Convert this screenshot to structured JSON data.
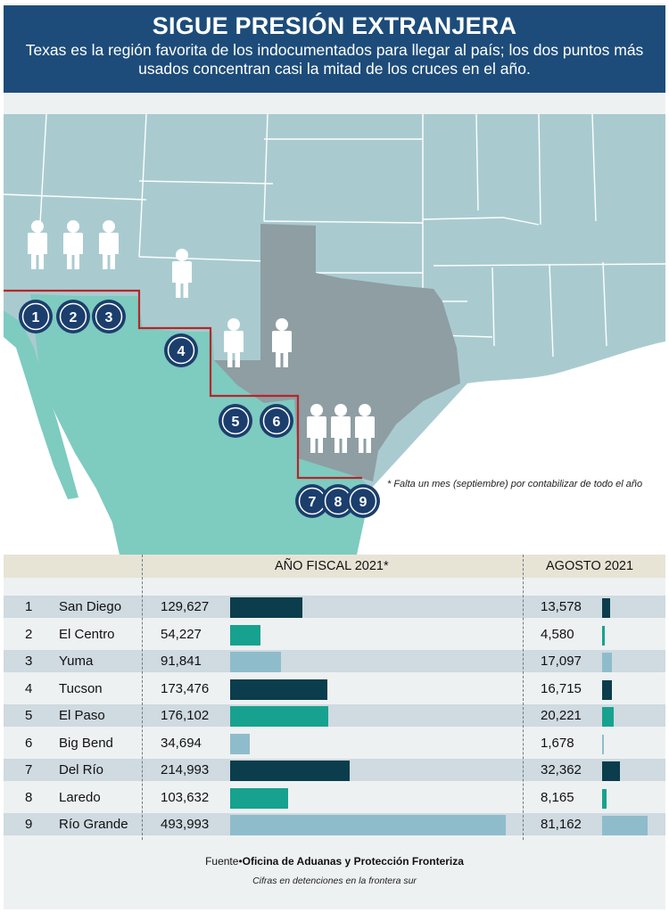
{
  "header": {
    "title": "SIGUE PRESIÓN EXTRANJERA",
    "subtitle": "Texas es la región favorita de los indocumentados para llegar al país; los dos puntos más usados concentran casi la mitad de los cruces en el año."
  },
  "map": {
    "note": "* Falta un mes (septiembre) por contabilizar de todo el año",
    "markers": [
      "1",
      "2",
      "3",
      "4",
      "5",
      "6",
      "7",
      "8",
      "9"
    ],
    "colors": {
      "land_us": "#a9cbd0",
      "texas": "#8e9ea3",
      "mexico": "#7ecbc0",
      "sea": "#ffffff",
      "border_line": "#b5262a",
      "marker": "#1b3e6d",
      "person_icon": "#ffffff"
    }
  },
  "table": {
    "col_fiscal": "AÑO FISCAL 2021*",
    "col_august": "AGOSTO 2021"
  },
  "chart_data": {
    "type": "bar",
    "title": "SIGUE PRESIÓN EXTRANJERA",
    "categories": [
      "San Diego",
      "El Centro",
      "Yuma",
      "Tucson",
      "El Paso",
      "Big Bend",
      "Del Río",
      "Laredo",
      "Río Grande"
    ],
    "numbers": [
      "1",
      "2",
      "3",
      "4",
      "5",
      "6",
      "7",
      "8",
      "9"
    ],
    "series": [
      {
        "name": "AÑO FISCAL 2021*",
        "values": [
          129627,
          54227,
          91841,
          173476,
          176102,
          34694,
          214993,
          103632,
          493993
        ],
        "labels": [
          "129,627",
          "54,227",
          "91,841",
          "173,476",
          "176,102",
          "34,694",
          "214,993",
          "103,632",
          "493,993"
        ],
        "max": 493993
      },
      {
        "name": "AGOSTO 2021",
        "values": [
          13578,
          4580,
          17097,
          16715,
          20221,
          1678,
          32362,
          8165,
          81162
        ],
        "labels": [
          "13,578",
          "4,580",
          "17,097",
          "16,715",
          "20,221",
          "1,678",
          "32,362",
          "8,165",
          "81,162"
        ],
        "max": 81162
      }
    ],
    "bar_colors": [
      "#0b3d4c",
      "#17a28f",
      "#8fbccb",
      "#0b3d4c",
      "#17a28f",
      "#8fbccb",
      "#0b3d4c",
      "#17a28f",
      "#8fbccb"
    ],
    "row_shading": [
      "#cfdae1",
      "#eef1f2"
    ]
  },
  "footer": {
    "source_prefix": "Fuente•",
    "source": "Oficina de Aduanas y Protección Fronteriza",
    "units": "Cifras en detenciones en la frontera sur"
  }
}
